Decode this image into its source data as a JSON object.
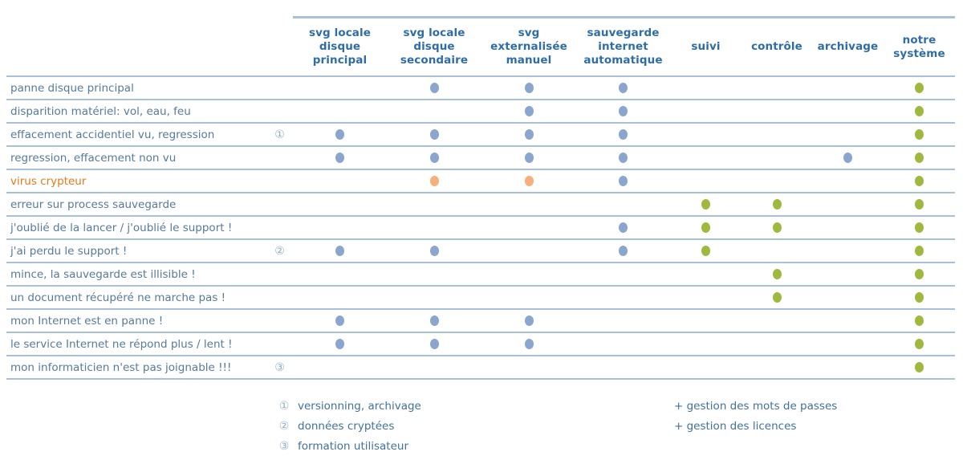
{
  "table": {
    "columns": [
      {
        "id": "svg-locale-disque-principal",
        "label": "svg locale\ndisque\nprincipal"
      },
      {
        "id": "svg-locale-disque-secondaire",
        "label": "svg locale\ndisque\nsecondaire"
      },
      {
        "id": "svg-externalisee-manuel",
        "label": "svg\nexternalisée\nmanuel"
      },
      {
        "id": "sauvegarde-internet-automatique",
        "label": "sauvegarde\ninternet\nautomatique"
      },
      {
        "id": "suivi",
        "label": "suivi"
      },
      {
        "id": "controle",
        "label": "contrôle"
      },
      {
        "id": "archivage",
        "label": "archivage"
      },
      {
        "id": "notre-systeme",
        "label": "notre\nsystème"
      }
    ],
    "rows": [
      {
        "label": "panne disque principal",
        "note": "",
        "highlight": false,
        "dots": [
          null,
          "blue",
          "blue",
          "blue",
          null,
          null,
          null,
          "green"
        ]
      },
      {
        "label": "disparition matériel: vol, eau, feu",
        "note": "",
        "highlight": false,
        "dots": [
          null,
          null,
          "blue",
          "blue",
          null,
          null,
          null,
          "green"
        ]
      },
      {
        "label": "effacement accidentiel vu, regression",
        "note": "①",
        "highlight": false,
        "dots": [
          "blue",
          "blue",
          "blue",
          "blue",
          null,
          null,
          null,
          "green"
        ]
      },
      {
        "label": "regression, effacement non vu",
        "note": "",
        "highlight": false,
        "dots": [
          "blue",
          "blue",
          "blue",
          "blue",
          null,
          null,
          "blue",
          "green"
        ]
      },
      {
        "label": "virus crypteur",
        "note": "",
        "highlight": true,
        "dots": [
          null,
          "orange",
          "orange",
          "blue",
          null,
          null,
          null,
          "green"
        ]
      },
      {
        "label": "erreur sur process sauvegarde",
        "note": "",
        "highlight": false,
        "dots": [
          null,
          null,
          null,
          null,
          "green",
          "green",
          null,
          "green"
        ]
      },
      {
        "label": "j'oublié de la lancer / j'oublié le support !",
        "note": "",
        "highlight": false,
        "dots": [
          null,
          null,
          null,
          "blue",
          "green",
          "green",
          null,
          "green"
        ]
      },
      {
        "label": "j'ai perdu le support !",
        "note": "②",
        "highlight": false,
        "dots": [
          "blue",
          "blue",
          null,
          "blue",
          "green",
          null,
          null,
          "green"
        ]
      },
      {
        "label": "mince, la sauvegarde est illisible !",
        "note": "",
        "highlight": false,
        "dots": [
          null,
          null,
          null,
          null,
          null,
          "green",
          null,
          "green"
        ]
      },
      {
        "label": "un document récupéré ne marche pas !",
        "note": "",
        "highlight": false,
        "dots": [
          null,
          null,
          null,
          null,
          null,
          "green",
          null,
          "green"
        ]
      },
      {
        "label": "mon Internet est en panne !",
        "note": "",
        "highlight": false,
        "dots": [
          "blue",
          "blue",
          "blue",
          null,
          null,
          null,
          null,
          "green"
        ]
      },
      {
        "label": "le service Internet ne répond plus / lent !",
        "note": "",
        "highlight": false,
        "dots": [
          "blue",
          "blue",
          "blue",
          null,
          null,
          null,
          null,
          "green"
        ]
      },
      {
        "label": "mon informaticien n'est pas joignable !!!",
        "note": "③",
        "highlight": false,
        "dots": [
          null,
          null,
          null,
          null,
          null,
          null,
          null,
          "green"
        ]
      }
    ]
  },
  "footnotes": [
    {
      "marker": "①",
      "text": "versionning, archivage"
    },
    {
      "marker": "②",
      "text": "données cryptées"
    },
    {
      "marker": "③",
      "text": "formation utilisateur"
    }
  ],
  "extras": [
    "+ gestion des mots de passes",
    "+ gestion des licences"
  ],
  "colors": {
    "line": "#a9c0db",
    "header_text": "#2e6da8",
    "row_text": "#567a9c",
    "accent_orange": "#e87817",
    "note_color": "#90abcc",
    "footnote_text": "#40719e",
    "dot_blue": "#8aa6ce",
    "dot_orange": "#f6ae7d",
    "dot_green": "#9fb93e"
  }
}
